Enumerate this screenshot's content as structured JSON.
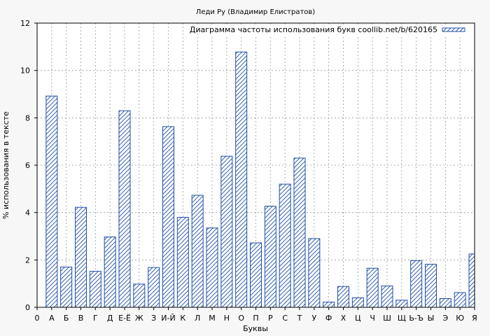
{
  "chart_data": {
    "type": "bar",
    "title": "Леди Ру (Владимир Елистратов)",
    "xlabel": "Буквы",
    "ylabel": "% использования в тексте",
    "ylim": [
      0,
      12
    ],
    "yticks": [
      "0",
      "2",
      "4",
      "6",
      "8",
      "10",
      "12"
    ],
    "categories": [
      "0",
      "А",
      "Б",
      "В",
      "Г",
      "Д",
      "Е-Ё",
      "Ж",
      "З",
      "И-Й",
      "К",
      "Л",
      "М",
      "Н",
      "О",
      "П",
      "Р",
      "С",
      "Т",
      "У",
      "Ф",
      "Х",
      "Ц",
      "Ч",
      "Ш",
      "Щ",
      "Ь-Ъ",
      "Ы",
      "Э",
      "Ю",
      "Я"
    ],
    "series": [
      {
        "name": "Диаграмма частоты использования букв coollib.net/b/620165",
        "values": [
          null,
          8.92,
          1.7,
          4.22,
          1.52,
          2.97,
          8.3,
          0.98,
          1.68,
          7.63,
          3.8,
          4.73,
          3.35,
          6.38,
          10.78,
          2.72,
          4.27,
          5.2,
          6.3,
          2.9,
          0.22,
          0.88,
          0.4,
          1.65,
          0.9,
          0.3,
          1.97,
          1.82,
          0.37,
          0.62,
          2.25
        ]
      }
    ],
    "grid": true,
    "legend": "top-right",
    "colors": {
      "bar_stroke": "#1f4ea8",
      "hatch": "#1f4ea8",
      "bar_fill": "#ffffff",
      "grid": "#999999",
      "background": "#f7f7f7"
    }
  }
}
